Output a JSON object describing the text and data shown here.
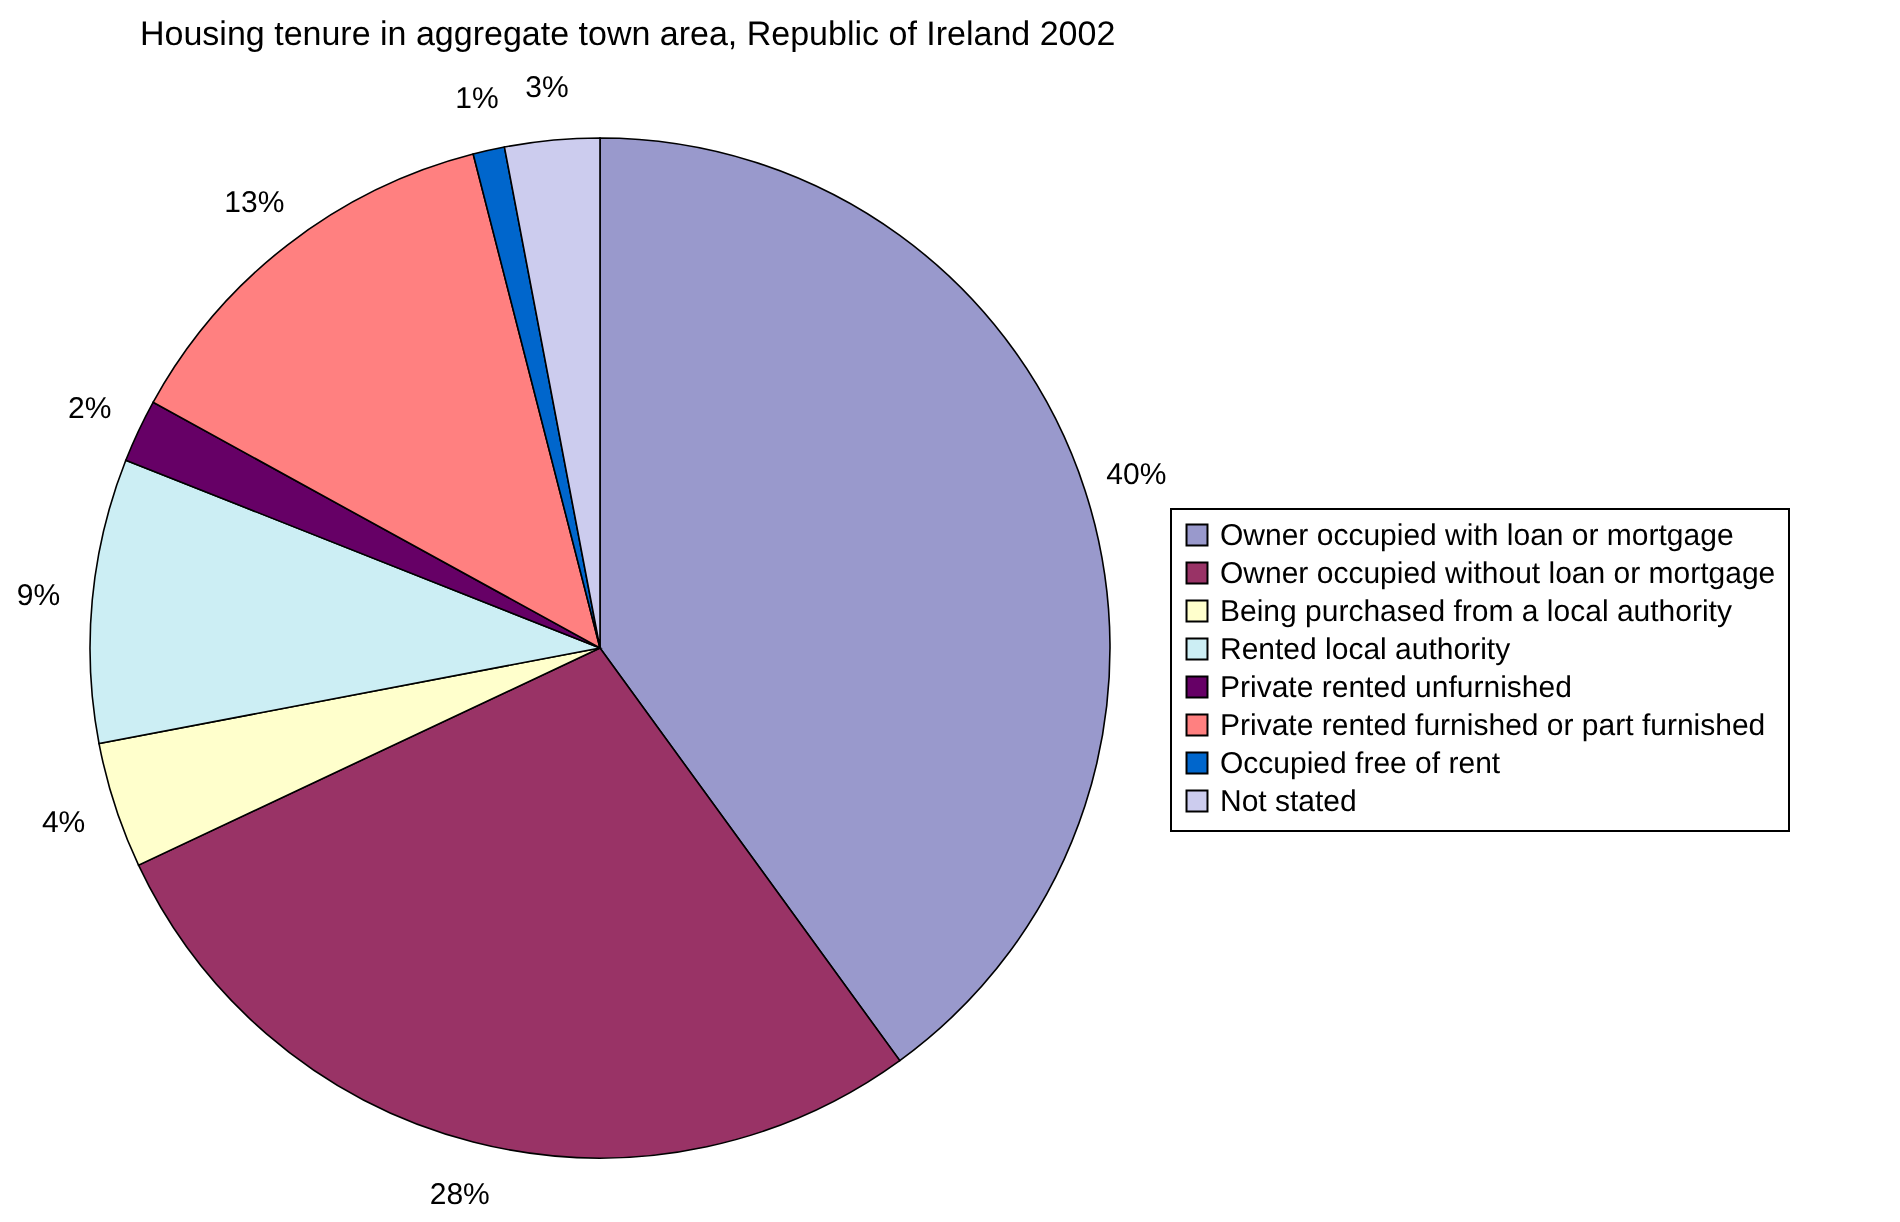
{
  "chart_data": {
    "type": "pie",
    "title": "Housing tenure in aggregate town area, Republic of Ireland 2002",
    "categories": [
      "Owner occupied with loan or mortgage",
      "Owner occupied without loan or mortgage",
      "Being purchased from a local authority",
      "Rented local authority",
      "Private rented unfurnished",
      "Private rented furnished or part furnished",
      "Occupied free of rent",
      "Not stated"
    ],
    "values": [
      40,
      28,
      4,
      9,
      2,
      13,
      1,
      3
    ],
    "value_labels": [
      "40%",
      "28%",
      "4%",
      "9%",
      "2%",
      "13%",
      "1%",
      "3%"
    ],
    "colors": [
      "#9999cc",
      "#993366",
      "#ffffcc",
      "#cceef4",
      "#660066",
      "#ff8080",
      "#0066cc",
      "#ccccee"
    ],
    "legend": "right"
  }
}
